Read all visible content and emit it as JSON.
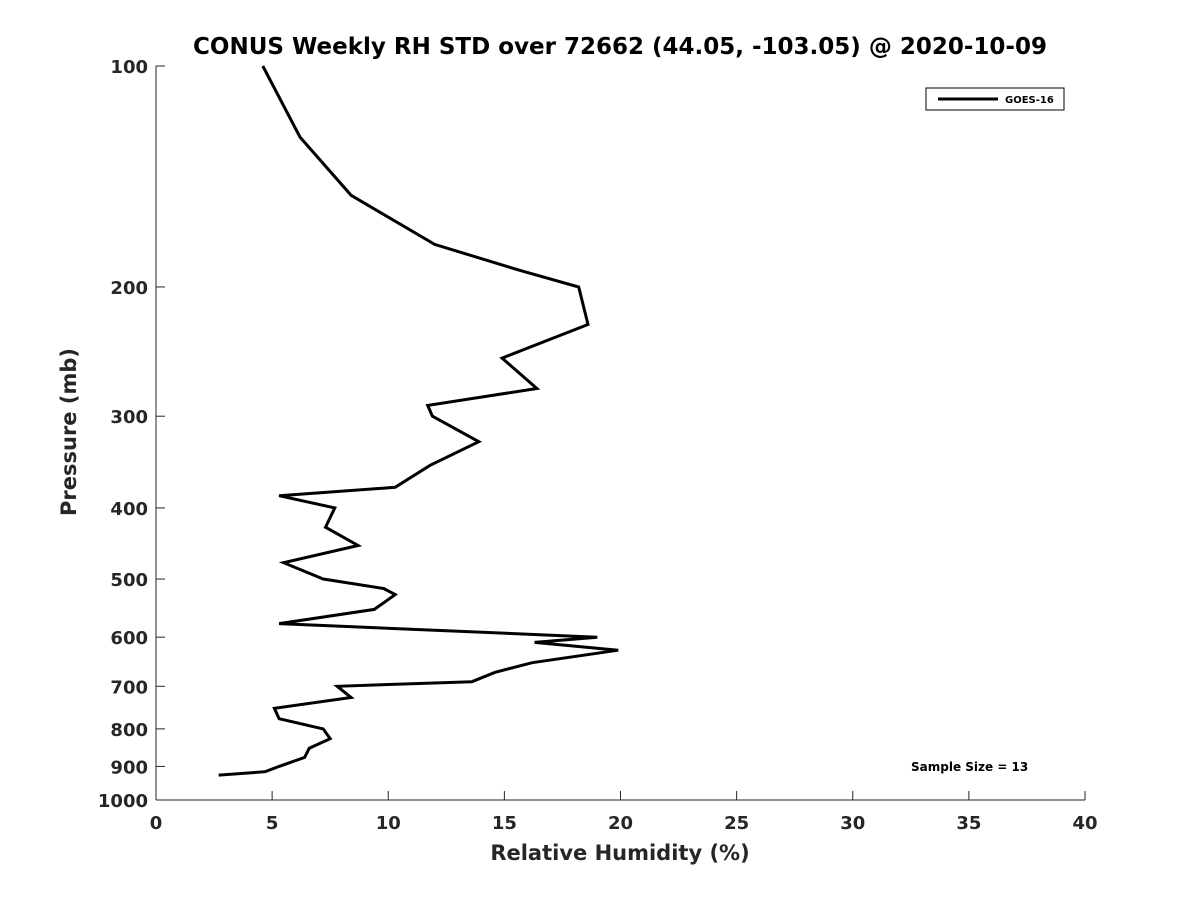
{
  "chart_data": {
    "type": "line",
    "title": "CONUS Weekly RH STD over 72662 (44.05, -103.05) @ 2020-10-09",
    "xlabel": "Relative Humidity (%)",
    "ylabel": "Pressure (mb)",
    "xlim": [
      0,
      40
    ],
    "ylim": [
      100,
      1000
    ],
    "yscale": "log",
    "y_reversed": true,
    "x_ticks": [
      0,
      5,
      10,
      15,
      20,
      25,
      30,
      35,
      40
    ],
    "y_ticks": [
      100,
      200,
      300,
      400,
      500,
      600,
      700,
      800,
      900,
      1000
    ],
    "legend": {
      "position": "top-right",
      "entries": [
        "GOES-16"
      ]
    },
    "annotation": "Sample Size = 13",
    "series": [
      {
        "name": "GOES-16",
        "color": "#000000",
        "x": [
          4.6,
          6.2,
          8.4,
          12.0,
          15.7,
          18.2,
          18.6,
          14.9,
          16.4,
          11.7,
          11.9,
          13.9,
          11.8,
          10.3,
          5.3,
          7.7,
          7.3,
          8.7,
          5.5,
          7.2,
          9.8,
          10.3,
          9.4,
          5.3,
          19.0,
          16.3,
          19.9,
          16.2,
          14.6,
          13.6,
          7.8,
          8.4,
          5.1,
          5.3,
          7.2,
          7.5,
          6.6,
          6.4,
          5.3,
          4.7,
          2.7
        ],
        "y": [
          100,
          125,
          150,
          175,
          190,
          200,
          225,
          250,
          275,
          290,
          300,
          325,
          350,
          375,
          385,
          400,
          425,
          450,
          475,
          500,
          515,
          525,
          550,
          575,
          600,
          610,
          625,
          650,
          670,
          690,
          700,
          725,
          750,
          775,
          800,
          825,
          850,
          875,
          900,
          915,
          925
        ]
      }
    ]
  }
}
